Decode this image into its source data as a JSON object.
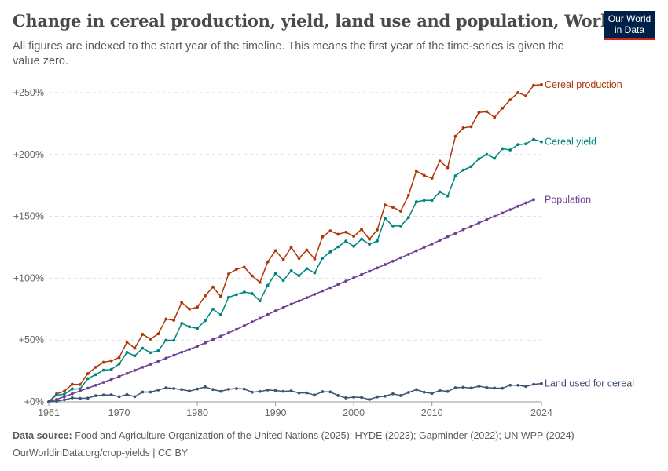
{
  "header": {
    "title": "Change in cereal production, yield, land use and population, World",
    "subtitle": "All figures are indexed to the start year of the timeline. This means the first year of the time-series is given the value zero.",
    "logo": "Our World in Data"
  },
  "footer": {
    "source_label": "Data source:",
    "source_text": "Food and Agriculture Organization of the United Nations (2025); HYDE (2023); Gapminder (2022); UN WPP (2024)",
    "url_license": "OurWorldinData.org/crop-yields | CC BY"
  },
  "chart_data": {
    "type": "line",
    "title": "Change in cereal production, yield, land use and population, World",
    "xlabel": "",
    "ylabel": "",
    "xlim": [
      1961,
      2024
    ],
    "ylim": [
      0,
      250
    ],
    "x_ticks": [
      1961,
      1970,
      1980,
      1990,
      2000,
      2010,
      2024
    ],
    "y_ticks": [
      0,
      50,
      100,
      150,
      200,
      250
    ],
    "y_tick_labels": [
      "+0%",
      "+50%",
      "+100%",
      "+150%",
      "+200%",
      "+250%"
    ],
    "grid": "horizontal dashed",
    "legend": "end-of-line labels, right",
    "series": [
      {
        "name": "Cereal production",
        "color": "#b13507",
        "start_year": 1961,
        "values": [
          0,
          6.5,
          8.6,
          14.3,
          14,
          22.8,
          28,
          32,
          33.2,
          35.8,
          48.3,
          43.4,
          54.6,
          50.8,
          55,
          67,
          66,
          80.4,
          75,
          76.6,
          85.7,
          92.9,
          85.2,
          103.4,
          107.2,
          108.9,
          101.9,
          96.6,
          113.2,
          122.3,
          115,
          125,
          116,
          122.8,
          115.6,
          133.4,
          138.2,
          135.5,
          137.2,
          133.8,
          139.5,
          131.5,
          139,
          159.2,
          157.3,
          154.2,
          167,
          186.7,
          183.1,
          180.8,
          194.6,
          189.3,
          214.7,
          221.5,
          222.5,
          234,
          234.6,
          230,
          237.4,
          244.2,
          250.1,
          247.4,
          255.9,
          256.5
        ]
      },
      {
        "name": "Cereal yield",
        "color": "#00847e",
        "start_year": 1961,
        "values": [
          0,
          5.5,
          6.2,
          10.5,
          10.5,
          18.8,
          22,
          25.6,
          26.2,
          30.6,
          40,
          37.2,
          43.4,
          39.8,
          41.3,
          49.9,
          49.7,
          63.5,
          60.7,
          59.4,
          65.7,
          75,
          70.4,
          84.6,
          86.7,
          88.8,
          87.6,
          81.7,
          94.2,
          103.8,
          98.2,
          106,
          102,
          107.7,
          104.3,
          116.2,
          121.3,
          125.3,
          130,
          125.7,
          131.6,
          127.4,
          130.1,
          148.4,
          142.2,
          142.2,
          149,
          161.8,
          162.9,
          162.9,
          169.7,
          166.4,
          182.7,
          187.4,
          190.2,
          196.5,
          200.1,
          196.9,
          204.6,
          203.7,
          208,
          208.6,
          212.2,
          210.3
        ]
      },
      {
        "name": "Population",
        "color": "#6d3e91",
        "start_year": 1961,
        "values": [
          0,
          2.0,
          4.2,
          6.5,
          8.8,
          11.1,
          13.4,
          15.8,
          18.1,
          20.5,
          23.0,
          25.5,
          28.0,
          30.4,
          32.9,
          35.3,
          37.7,
          40.1,
          42.5,
          45.0,
          47.7,
          50.4,
          53.1,
          55.8,
          58.6,
          61.6,
          64.6,
          67.6,
          70.6,
          73.6,
          76.3,
          79.0,
          81.6,
          84.3,
          87.0,
          89.7,
          92.3,
          95.0,
          97.6,
          100.3,
          103.0,
          105.6,
          108.3,
          111.0,
          113.7,
          116.5,
          119.3,
          122.1,
          124.9,
          127.7,
          130.6,
          133.5,
          136.3,
          139.2,
          142.0,
          144.7,
          147.4,
          150.0,
          152.7,
          155.4,
          158.1,
          160.8,
          163.5
        ]
      },
      {
        "name": "Land used for cereal",
        "color": "#3f5372",
        "start_year": 1961,
        "values": [
          0,
          0.5,
          1.7,
          3.2,
          2.8,
          3.0,
          5,
          5.5,
          5.7,
          4.2,
          5.9,
          4.2,
          7.9,
          7.9,
          9.6,
          11.4,
          10.8,
          10,
          8.7,
          10.4,
          12.1,
          10,
          8.5,
          10.2,
          10.8,
          10.4,
          7.8,
          8.4,
          9.6,
          9.2,
          8.5,
          8.9,
          7.2,
          7.2,
          5.5,
          8.2,
          8.0,
          5.1,
          3.2,
          3.8,
          3.6,
          1.9,
          4,
          4.6,
          6.5,
          5.1,
          7.6,
          9.9,
          7.8,
          6.8,
          9.3,
          8.4,
          11.4,
          11.8,
          11.2,
          12.7,
          11.6,
          11.2,
          11.0,
          13.5,
          13.5,
          12.5,
          14.2,
          14.8
        ]
      }
    ]
  }
}
